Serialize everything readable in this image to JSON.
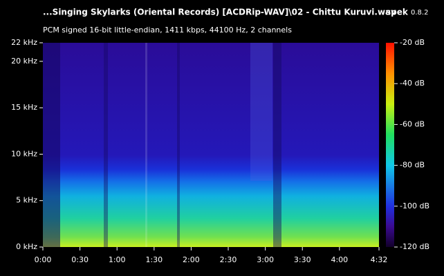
{
  "chart_data": {
    "type": "spectrogram",
    "title": "...Singing Skylarks (Oriental Records) [ACDRip-WAV]\\02 - Chittu Kuruvi.wav",
    "app_name": "spek",
    "app_version": "0.8.2",
    "subtitle": "PCM signed 16-bit little-endian, 1411 kbps, 44100 Hz, 2 channels",
    "xlim": [
      0,
      272
    ],
    "xticks": [
      {
        "value": 0,
        "label": "0:00"
      },
      {
        "value": 30,
        "label": "0:30"
      },
      {
        "value": 60,
        "label": "1:00"
      },
      {
        "value": 90,
        "label": "1:30"
      },
      {
        "value": 120,
        "label": "2:00"
      },
      {
        "value": 150,
        "label": "2:30"
      },
      {
        "value": 180,
        "label": "3:00"
      },
      {
        "value": 210,
        "label": "3:30"
      },
      {
        "value": 240,
        "label": "4:00"
      },
      {
        "value": 272,
        "label": "4:32"
      }
    ],
    "ylim": [
      0,
      22
    ],
    "yticks": [
      {
        "value": 0,
        "label": "0 kHz"
      },
      {
        "value": 5,
        "label": "5 kHz"
      },
      {
        "value": 10,
        "label": "10 kHz"
      },
      {
        "value": 15,
        "label": "15 kHz"
      },
      {
        "value": 20,
        "label": "20 kHz"
      },
      {
        "value": 22,
        "label": "22 kHz"
      }
    ],
    "zlim": [
      -120,
      -20
    ],
    "zticks": [
      {
        "value": -20,
        "label": "-20 dB"
      },
      {
        "value": -40,
        "label": "-40 dB"
      },
      {
        "value": -60,
        "label": "-60 dB"
      },
      {
        "value": -80,
        "label": "-80 dB"
      },
      {
        "value": -100,
        "label": "-100 dB"
      },
      {
        "value": -120,
        "label": "-120 dB"
      }
    ]
  }
}
